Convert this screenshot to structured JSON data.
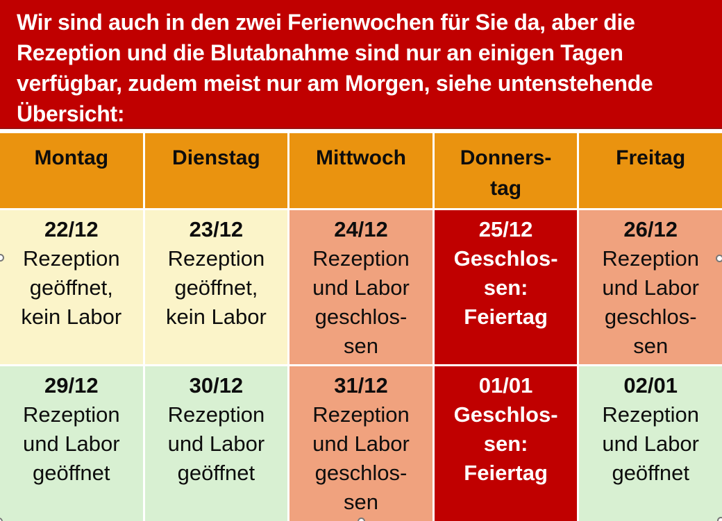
{
  "banner": {
    "full_text": "Wir sind auch in den zwei Ferienwochen für Sie da, aber die Rezeption und die Blutabnahme sind nur an einigen Tagen verfügbar, zudem meist nur am Morgen, siehe untenstehende Übersicht:",
    "lines": [
      "Wir sind auch in den zwei Ferienwochen für Sie da, aber die",
      "Rezeption und die Blutabnahme sind nur an einigen Tagen",
      "verfügbar, zudem meist nur am Morgen, siehe untenstehende",
      "Übersicht:"
    ]
  },
  "table": {
    "header": {
      "columns": [
        "Montag",
        "Dienstag",
        "Mittwoch",
        "Donners-\ntag",
        "Freitag"
      ]
    },
    "rows": [
      {
        "cells": [
          {
            "date": "22/12",
            "text": "Rezeption\ngeöffnet,\nkein Labor",
            "variant": "yellow",
            "status": "Rezeption geöffnet, kein Labor"
          },
          {
            "date": "23/12",
            "text": "Rezeption\ngeöffnet,\nkein Labor",
            "variant": "yellow",
            "status": "Rezeption geöffnet, kein Labor"
          },
          {
            "date": "24/12",
            "text": "Rezeption\nund Labor\ngeschlos-\nsen",
            "variant": "salmon",
            "status": "Rezeption und Labor geschlossen"
          },
          {
            "date": "25/12",
            "text": "Geschlos-\nsen:\nFeiertag",
            "variant": "red",
            "status": "Geschlossen: Feiertag"
          },
          {
            "date": "26/12",
            "text": "Rezeption\nund Labor\ngeschlos-\nsen",
            "variant": "salmon",
            "status": "Rezeption und Labor geschlossen"
          }
        ]
      },
      {
        "cells": [
          {
            "date": "29/12",
            "text": "Rezeption\nund Labor\ngeöffnet",
            "variant": "green",
            "status": "Rezeption und Labor geöffnet"
          },
          {
            "date": "30/12",
            "text": "Rezeption\nund Labor\ngeöffnet",
            "variant": "green",
            "status": "Rezeption und Labor geöffnet"
          },
          {
            "date": "31/12",
            "text": "Rezeption\nund Labor\ngeschlos-\nsen",
            "variant": "salmon",
            "status": "Rezeption und Labor geschlossen"
          },
          {
            "date": "01/01",
            "text": "Geschlos-\nsen:\nFeiertag",
            "variant": "red",
            "status": "Geschlossen: Feiertag"
          },
          {
            "date": "02/01",
            "text": "Rezeption\nund Labor\ngeöffnet",
            "variant": "green",
            "status": "Rezeption und Labor geöffnet"
          }
        ]
      }
    ]
  },
  "colors": {
    "banner_red": "#C00000",
    "header_orange": "#EA930F",
    "open_no_lab_yellow": "#FBF4C9",
    "closed_salmon": "#F0A27E",
    "holiday_red": "#C00000",
    "open_green": "#D8F0D2",
    "grid_line_white": "#FFFFFF",
    "handle_gray": "#777777"
  }
}
